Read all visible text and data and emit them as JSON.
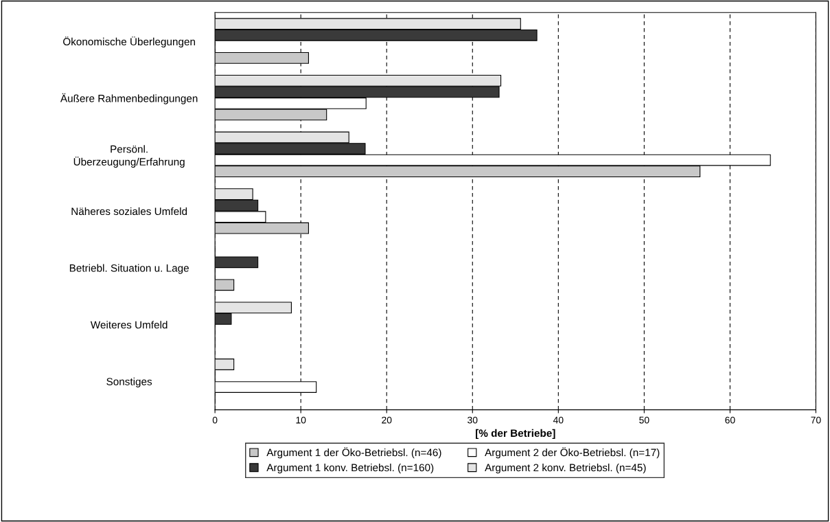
{
  "chart_data": {
    "type": "bar",
    "orientation": "horizontal",
    "xlabel": "[% der Betriebe]",
    "categories": [
      "Ökonomische Überlegungen",
      "Äußere Rahmenbedingungen",
      "Persönl.\nÜberzeugung/Erfahrung",
      "Näheres soziales Umfeld",
      "Betriebl. Situation u. Lage",
      "Weiteres Umfeld",
      "Sonstiges"
    ],
    "series": [
      {
        "name": "Argument 1 der Öko-Betriebsl. (n=46)",
        "color": "#c8c8c8",
        "values": [
          10.9,
          13.0,
          56.5,
          10.9,
          2.2,
          0,
          0
        ]
      },
      {
        "name": "Argument 2 der Öko-Betriebsl. (n=17)",
        "color": "#ffffff",
        "values": [
          0,
          17.6,
          64.7,
          5.9,
          0,
          0,
          11.8
        ]
      },
      {
        "name": "Argument 1 konv. Betriebsl. (n=160)",
        "color": "#3a3a3a",
        "values": [
          37.5,
          33.1,
          17.5,
          5.0,
          5.0,
          1.9,
          0
        ]
      },
      {
        "name": "Argument 2 konv. Betriebsl. (n=45)",
        "color": "#e4e4e4",
        "values": [
          35.6,
          33.3,
          15.6,
          4.4,
          0,
          8.9,
          2.2
        ]
      }
    ],
    "xlim": [
      0,
      70
    ],
    "xticks": [
      0,
      10,
      20,
      30,
      40,
      50,
      60,
      70
    ],
    "grid": "x",
    "legend": "bottom"
  }
}
